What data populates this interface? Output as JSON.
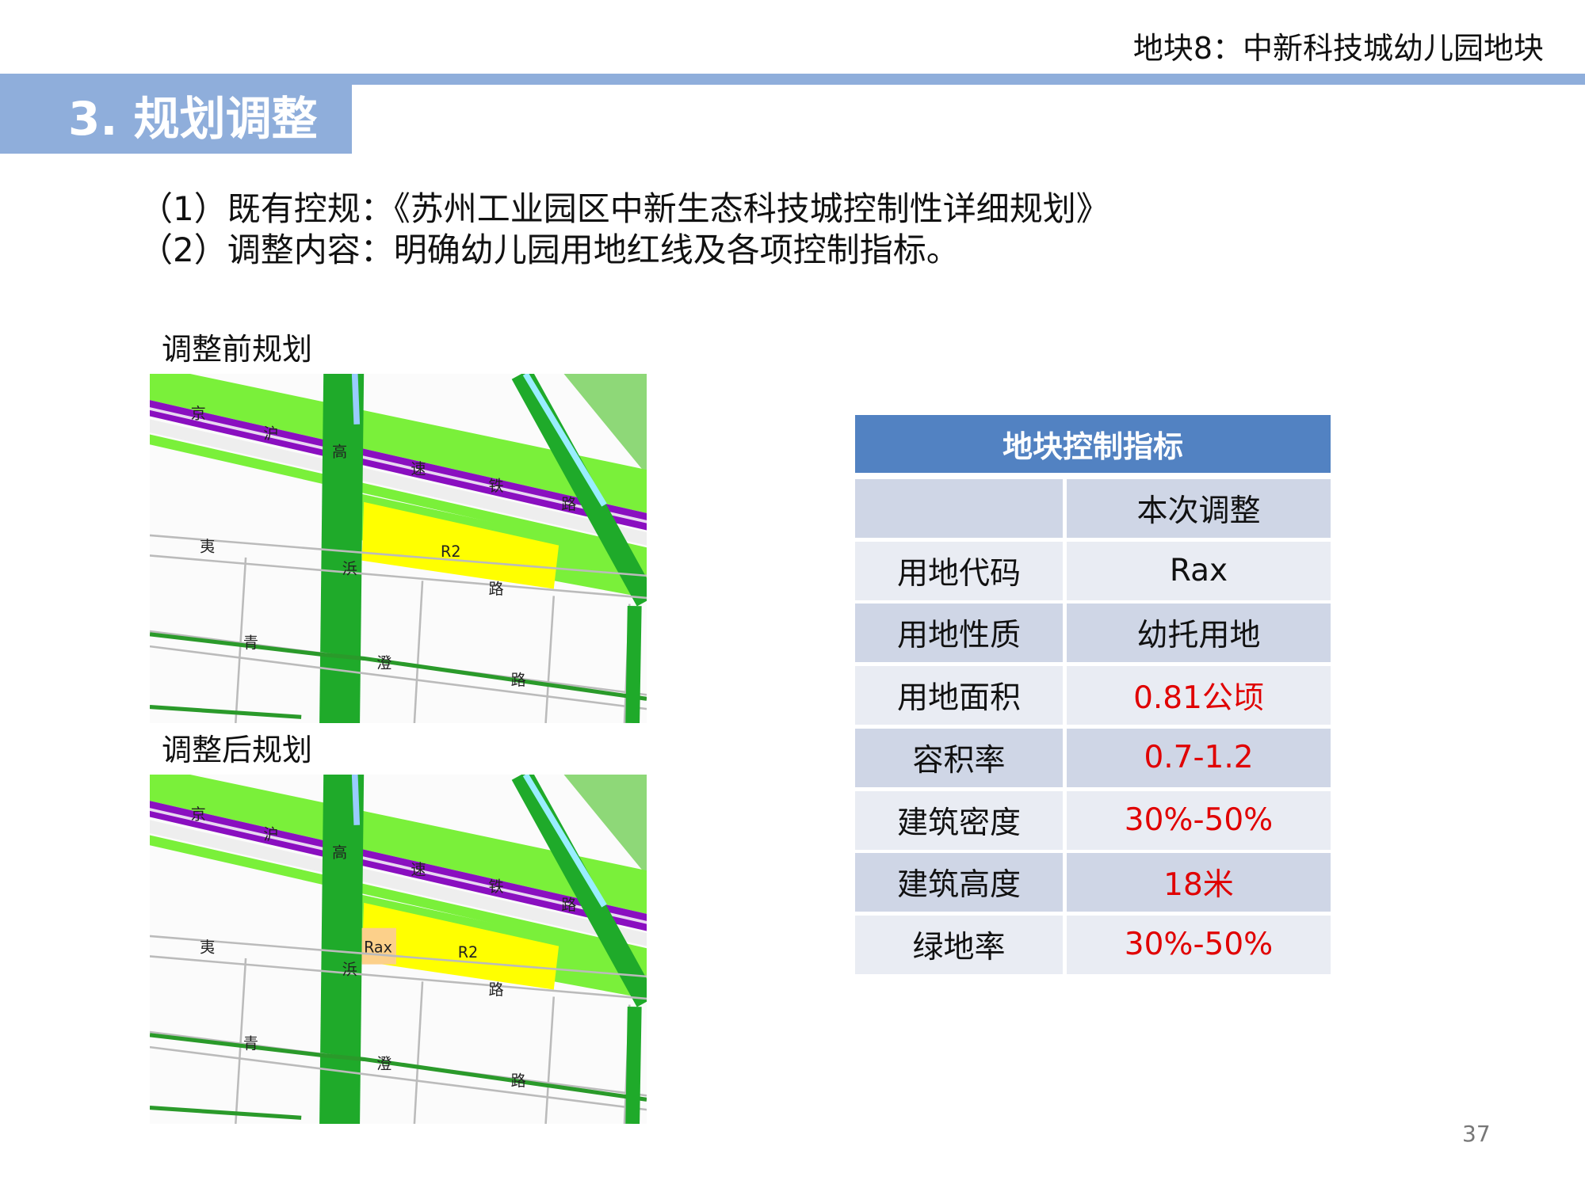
{
  "header": {
    "title": "地块8：中新科技城幼儿园地块",
    "section": "3. 规划调整"
  },
  "body": {
    "lines": [
      "（1）既有控规：《苏州工业园区中新生态科技城控制性详细规划》",
      "（2）调整内容：明确幼儿园用地红线及各项控制指标。"
    ]
  },
  "maps": [
    {
      "caption": "调整前规划",
      "labels": [
        "京",
        "沪",
        "高",
        "速",
        "铁",
        "路",
        "夷",
        "浜",
        "路",
        "青",
        "澄",
        "路",
        "R2"
      ]
    },
    {
      "caption": "调整后规划",
      "labels": [
        "京",
        "沪",
        "高",
        "速",
        "铁",
        "路",
        "夷",
        "浜",
        "路",
        "青",
        "澄",
        "路",
        "R2",
        "Rax"
      ]
    }
  ],
  "table": {
    "title": "地块控制指标",
    "column_header": "本次调整",
    "rows": [
      [
        "用地代码",
        "Rax"
      ],
      [
        "用地性质",
        "幼托用地"
      ],
      [
        "用地面积",
        "0.81公顷"
      ],
      [
        "容积率",
        "0.7-1.2"
      ],
      [
        "建筑密度",
        "30%-50%"
      ],
      [
        "建筑高度",
        "18米"
      ],
      [
        "绿地率",
        "30%-50%"
      ]
    ],
    "highlight_rows": [
      2,
      3,
      4,
      5,
      6
    ],
    "highlight_color": "#e00000"
  },
  "footer": {
    "page": "37"
  }
}
